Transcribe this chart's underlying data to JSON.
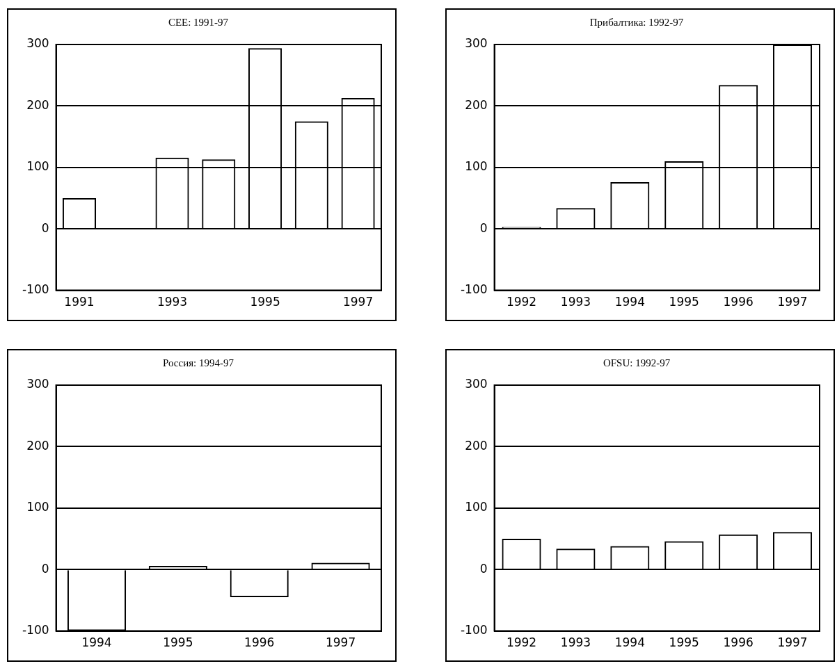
{
  "chart_data": [
    {
      "type": "bar",
      "title": "CEE: 1991-97",
      "categories": [
        "1991",
        null,
        "1993",
        null,
        "1995",
        null,
        "1997"
      ],
      "values": [
        50,
        null,
        116,
        113,
        294,
        175,
        213
      ],
      "color": "#000000",
      "ylim": [
        -100,
        300
      ],
      "yticks": [
        -100,
        0,
        100,
        200,
        300
      ],
      "grid": "y"
    },
    {
      "type": "bar",
      "title": "Прибалтика: 1992-97",
      "categories": [
        "1992",
        "1993",
        "1994",
        "1995",
        "1996",
        "1997"
      ],
      "values": [
        3,
        34,
        76,
        110,
        234,
        300
      ],
      "color": "#000000",
      "ylim": [
        -100,
        300
      ],
      "yticks": [
        -100,
        0,
        100,
        200,
        300
      ],
      "grid": "y"
    },
    {
      "type": "bar",
      "title": "Россия: 1994-97",
      "categories": [
        "1994",
        "1995",
        "1996",
        "1997"
      ],
      "values": [
        -100,
        6,
        -45,
        11
      ],
      "color": "#000000",
      "ylim": [
        -100,
        300
      ],
      "yticks": [
        -100,
        0,
        100,
        200,
        300
      ],
      "grid": "y"
    },
    {
      "type": "bar",
      "title": "OFSU: 1992-97",
      "categories": [
        "1992",
        "1993",
        "1994",
        "1995",
        "1996",
        "1997"
      ],
      "values": [
        50,
        34,
        38,
        46,
        57,
        61
      ],
      "color": "#000000",
      "ylim": [
        -100,
        300
      ],
      "yticks": [
        -100,
        0,
        100,
        200,
        300
      ],
      "grid": "y"
    }
  ]
}
